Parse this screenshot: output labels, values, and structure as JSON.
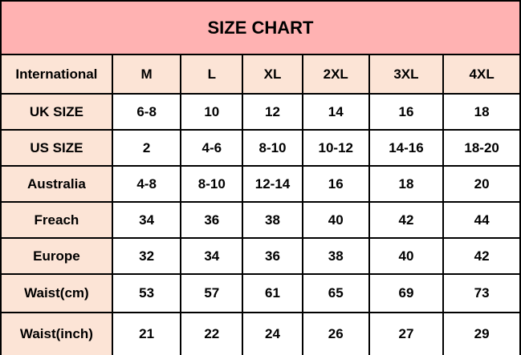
{
  "title": "SIZE CHART",
  "colors": {
    "title_bg": "#FFB2B2",
    "header_bg": "#FCE4D6"
  },
  "header": [
    "International",
    "M",
    "L",
    "XL",
    "2XL",
    "3XL",
    "4XL"
  ],
  "rows": [
    [
      "UK SIZE",
      "6-8",
      "10",
      "12",
      "14",
      "16",
      "18"
    ],
    [
      "US SIZE",
      "2",
      "4-6",
      "8-10",
      "10-12",
      "14-16",
      "18-20"
    ],
    [
      "Australia",
      "4-8",
      "8-10",
      "12-14",
      "16",
      "18",
      "20"
    ],
    [
      "Freach",
      "34",
      "36",
      "38",
      "40",
      "42",
      "44"
    ],
    [
      "Europe",
      "32",
      "34",
      "36",
      "38",
      "40",
      "42"
    ],
    [
      "Waist(cm)",
      "53",
      "57",
      "61",
      "65",
      "69",
      "73"
    ],
    [
      "Waist(inch)",
      "21",
      "22",
      "24",
      "26",
      "27",
      "29"
    ]
  ]
}
